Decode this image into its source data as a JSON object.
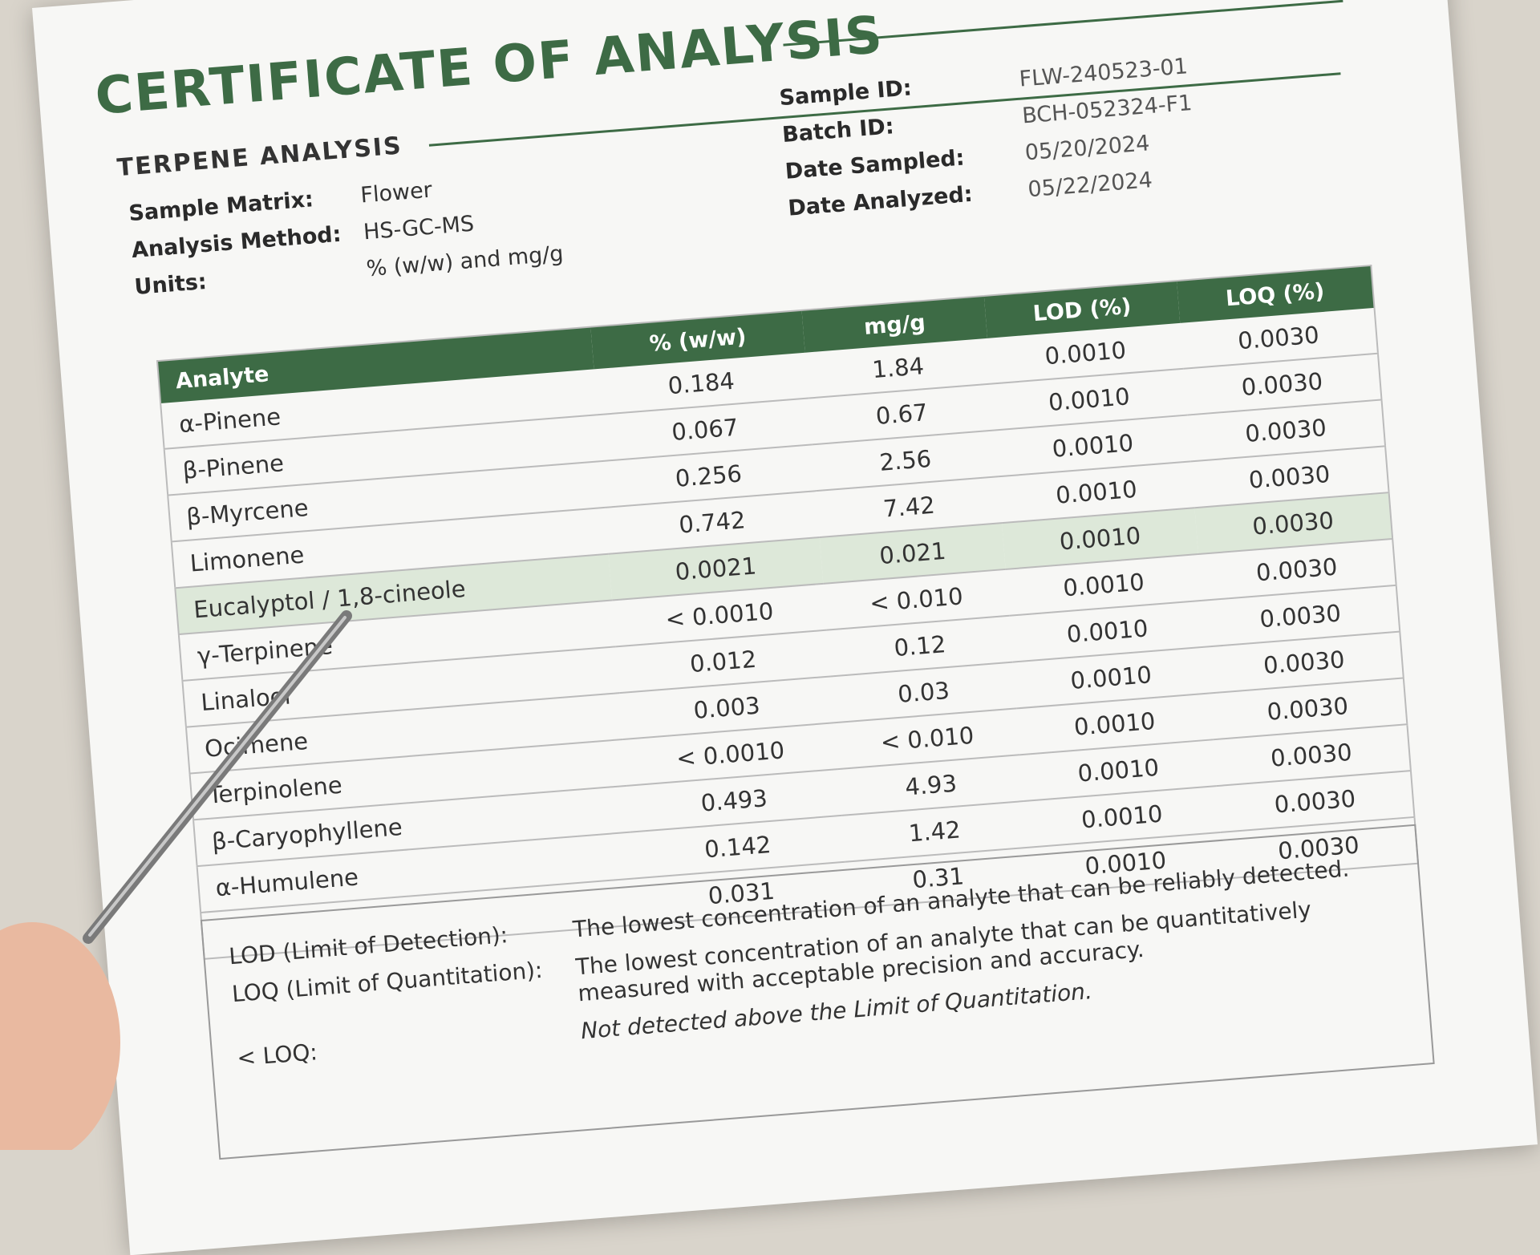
{
  "header": {
    "title": "CERTIFICATE OF ANALYSIS",
    "subtitle": "TERPENE ANALYSIS"
  },
  "info_left": [
    {
      "label": "Sample Matrix:",
      "value": "Flower"
    },
    {
      "label": "Analysis Method:",
      "value": "HS-GC-MS"
    },
    {
      "label": "Units:",
      "value": "% (w/w)  and mg/g"
    }
  ],
  "info_right": [
    {
      "label": "Sample ID:",
      "value": "FLW-240523-01"
    },
    {
      "label": "Batch ID:",
      "value": "BCH-052324-F1"
    },
    {
      "label": "Date Sampled:",
      "value": "05/20/2024"
    },
    {
      "label": "Date Analyzed:",
      "value": "05/22/2024"
    }
  ],
  "table": {
    "columns": [
      "Analyte",
      "% (w/w)",
      "mg/g",
      "LOD (%)",
      "LOQ (%)"
    ],
    "rows": [
      [
        "α-Pinene",
        "0.184",
        "1.84",
        "0.0010",
        "0.0030"
      ],
      [
        "β-Pinene",
        "0.067",
        "0.67",
        "0.0010",
        "0.0030"
      ],
      [
        "β-Myrcene",
        "0.256",
        "2.56",
        "0.0010",
        "0.0030"
      ],
      [
        "Limonene",
        "0.742",
        "7.42",
        "0.0010",
        "0.0030"
      ],
      [
        "Eucalyptol / 1,8-cineole",
        "0.0021",
        "0.021",
        "0.0010",
        "0.0030"
      ],
      [
        "γ-Terpinene",
        "< 0.0010",
        "< 0.010",
        "0.0010",
        "0.0030"
      ],
      [
        "Linalool",
        "0.012",
        "0.12",
        "0.0010",
        "0.0030"
      ],
      [
        "Ocimene",
        "0.003",
        "0.03",
        "0.0010",
        "0.0030"
      ],
      [
        "Terpinolene",
        "< 0.0010",
        "< 0.010",
        "0.0010",
        "0.0030"
      ],
      [
        "β-Caryophyllene",
        "0.493",
        "4.93",
        "0.0010",
        "0.0030"
      ],
      [
        "α-Humulene",
        "0.142",
        "1.42",
        "0.0010",
        "0.0030"
      ],
      [
        null,
        "0.031",
        "0.31",
        "0.0010",
        "0.0030"
      ]
    ]
  },
  "notes": [
    {
      "term": "LOD (Limit of Detection):",
      "text": "The lowest concentration of an analyte that can be reliably detected."
    },
    {
      "term": "LOQ (Limit of Quantitation):",
      "text": "The lowest concentration of an analyte that can be quantitatively measured with acceptable precision and accuracy."
    },
    {
      "term": "< LOQ:",
      "text": "Not detected above the Limit of Quantitation."
    }
  ]
}
